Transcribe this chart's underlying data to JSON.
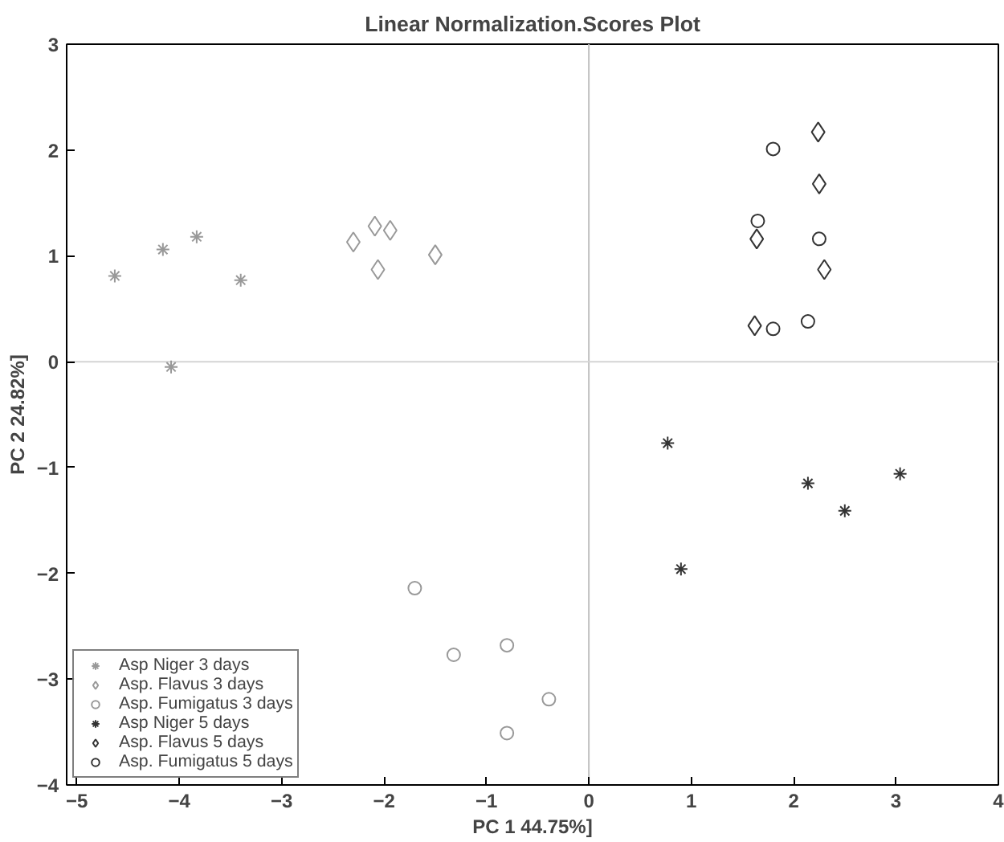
{
  "chart_data": {
    "type": "scatter",
    "title": "Linear Normalization.Scores Plot",
    "xlabel": "PC 1 44.75%]",
    "ylabel": "PC 2 24.82%]",
    "xlim": [
      -5.1,
      4
    ],
    "ylim": [
      -4,
      3
    ],
    "xticks": [
      -5,
      -4,
      -3,
      -2,
      -1,
      0,
      1,
      2,
      3,
      4
    ],
    "yticks": [
      -4,
      -3,
      -2,
      -1,
      0,
      1,
      2,
      3
    ],
    "grid": false,
    "legend": "bottom left",
    "ref_lines": [
      {
        "axis": "x",
        "value": 0,
        "color": "#c0c0c0"
      },
      {
        "axis": "y",
        "value": 0,
        "color": "#d4d4d4"
      }
    ],
    "series": [
      {
        "name": "Asp Niger 3 days",
        "color": "#999999",
        "marker": "cross",
        "x": [
          -4.63,
          -4.16,
          -3.83,
          -3.4,
          -4.08
        ],
        "values": [
          0.81,
          1.06,
          1.18,
          0.77,
          -0.05
        ]
      },
      {
        "name": "Asp. Flavus 3 days",
        "color": "#999999",
        "marker": "diamond",
        "x": [
          -2.3,
          -2.09,
          -1.94,
          -2.06,
          -1.5
        ],
        "values": [
          1.13,
          1.28,
          1.24,
          0.87,
          1.01
        ]
      },
      {
        "name": "Asp. Fumigatus 3 days",
        "color": "#999999",
        "marker": "circle",
        "x": [
          -1.7,
          -1.32,
          -0.8,
          -0.39,
          -0.8
        ],
        "values": [
          -2.14,
          -2.77,
          -2.68,
          -3.19,
          -3.51
        ]
      },
      {
        "name": "Asp Niger 5 days",
        "color": "#333333",
        "marker": "cross",
        "x": [
          0.77,
          2.14,
          2.5,
          3.04,
          0.9
        ],
        "values": [
          -0.77,
          -1.15,
          -1.41,
          -1.06,
          -1.96
        ]
      },
      {
        "name": "Asp. Flavus 5 days",
        "color": "#333333",
        "marker": "diamond",
        "x": [
          2.24,
          2.25,
          1.64,
          2.3,
          1.62
        ],
        "values": [
          2.17,
          1.68,
          1.16,
          0.87,
          0.34
        ]
      },
      {
        "name": "Asp. Fumigatus 5 days",
        "color": "#333333",
        "marker": "circle",
        "x": [
          1.8,
          1.65,
          2.25,
          2.14,
          1.8
        ],
        "values": [
          2.01,
          1.33,
          1.16,
          0.38,
          0.31
        ]
      }
    ]
  }
}
